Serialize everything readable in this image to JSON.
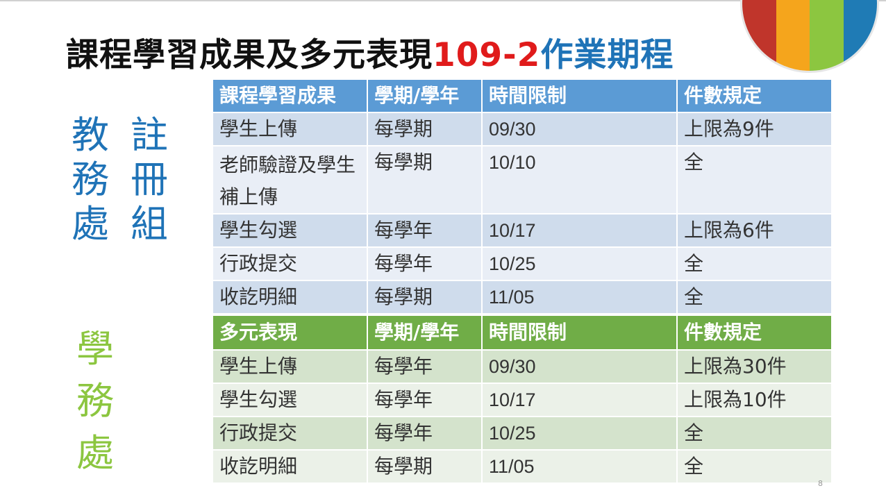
{
  "slide": {
    "title_black": "課程學習成果及多元表現",
    "title_red": "109-2",
    "title_blue": "作業期程",
    "page_number": "8"
  },
  "labels": {
    "registration": "註冊組",
    "academic": "教務處",
    "student_affairs": "學務處"
  },
  "colors": {
    "accent_red": "#e01b1b",
    "accent_blue": "#1f73b7",
    "accent_green": "#8cc640",
    "table1_header": "#5b9bd5",
    "table2_header": "#70ad47",
    "logo_stripes": [
      "#c0352b",
      "#f5a51c",
      "#8cc640",
      "#1f7bb5"
    ]
  },
  "table_learning": {
    "headers": [
      "課程學習成果",
      "學期/學年",
      "時間限制",
      "件數規定"
    ],
    "rows": [
      {
        "item": "學生上傳",
        "term": "每學期",
        "deadline": "09/30",
        "limit": "上限為9件"
      },
      {
        "item": "老師驗證及學生補上傳",
        "term": "每學期",
        "deadline": "10/10",
        "limit": "全"
      },
      {
        "item": "學生勾選",
        "term": "每學年",
        "deadline": "10/17",
        "limit": "上限為6件"
      },
      {
        "item": "行政提交",
        "term": "每學年",
        "deadline": "10/25",
        "limit": "全"
      },
      {
        "item": "收訖明細",
        "term": "每學期",
        "deadline": "11/05",
        "limit": "全"
      }
    ]
  },
  "table_diverse": {
    "headers": [
      "多元表現",
      "學期/學年",
      "時間限制",
      "件數規定"
    ],
    "rows": [
      {
        "item": "學生上傳",
        "term": "每學年",
        "deadline": "09/30",
        "limit": "上限為30件"
      },
      {
        "item": "學生勾選",
        "term": "每學年",
        "deadline": "10/17",
        "limit": "上限為10件"
      },
      {
        "item": "行政提交",
        "term": "每學年",
        "deadline": "10/25",
        "limit": "全"
      },
      {
        "item": "收訖明細",
        "term": "每學期",
        "deadline": "11/05",
        "limit": "全"
      }
    ]
  }
}
